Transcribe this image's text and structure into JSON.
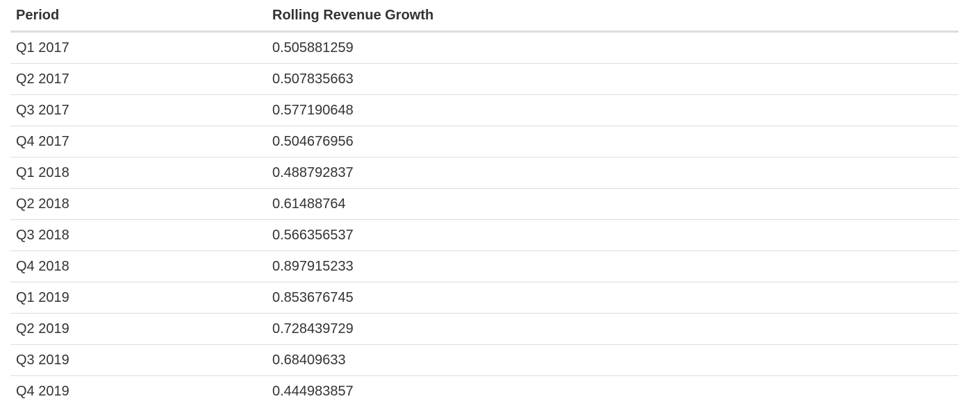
{
  "table": {
    "headers": {
      "period": "Period",
      "growth": "Rolling Revenue Growth"
    },
    "rows": [
      {
        "period": "Q1 2017",
        "growth": "0.505881259"
      },
      {
        "period": "Q2 2017",
        "growth": "0.507835663"
      },
      {
        "period": "Q3 2017",
        "growth": "0.577190648"
      },
      {
        "period": "Q4 2017",
        "growth": "0.504676956"
      },
      {
        "period": "Q1 2018",
        "growth": "0.488792837"
      },
      {
        "period": "Q2 2018",
        "growth": "0.61488764"
      },
      {
        "period": "Q3 2018",
        "growth": "0.566356537"
      },
      {
        "period": "Q4 2018",
        "growth": "0.897915233"
      },
      {
        "period": "Q1 2019",
        "growth": "0.853676745"
      },
      {
        "period": "Q2 2019",
        "growth": "0.728439729"
      },
      {
        "period": "Q3 2019",
        "growth": "0.68409633"
      },
      {
        "period": "Q4 2019",
        "growth": "0.444983857"
      }
    ]
  }
}
